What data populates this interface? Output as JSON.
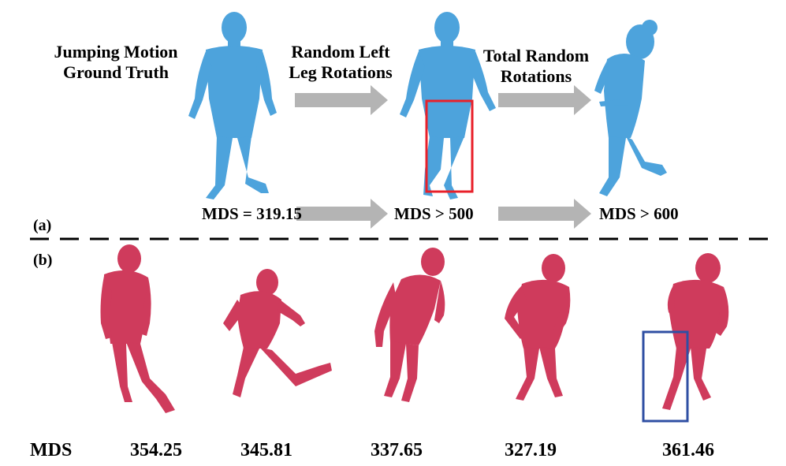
{
  "panel_a": {
    "tag": "(a)",
    "title_ground_truth": [
      "Jumping Motion",
      "Ground Truth"
    ],
    "title_left_leg": [
      "Random Left",
      "Leg Rotations"
    ],
    "title_total": [
      "Total Random",
      "Rotations"
    ],
    "mds_ground_truth": "MDS =  319.15",
    "mds_left_leg": "MDS  > 500",
    "mds_total": "MDS > 600",
    "figure_color": "#4da3dc",
    "highlight_color": "#e8202a"
  },
  "panel_b": {
    "tag": "(b)",
    "mds_label": "MDS",
    "values": [
      "354.25",
      "345.81",
      "337.65",
      "327.19",
      "361.46"
    ],
    "figure_color": "#cf3b5c",
    "highlight_color": "#2f4fa3"
  },
  "arrow_color": "#b4b4b4",
  "divider": "dashed"
}
